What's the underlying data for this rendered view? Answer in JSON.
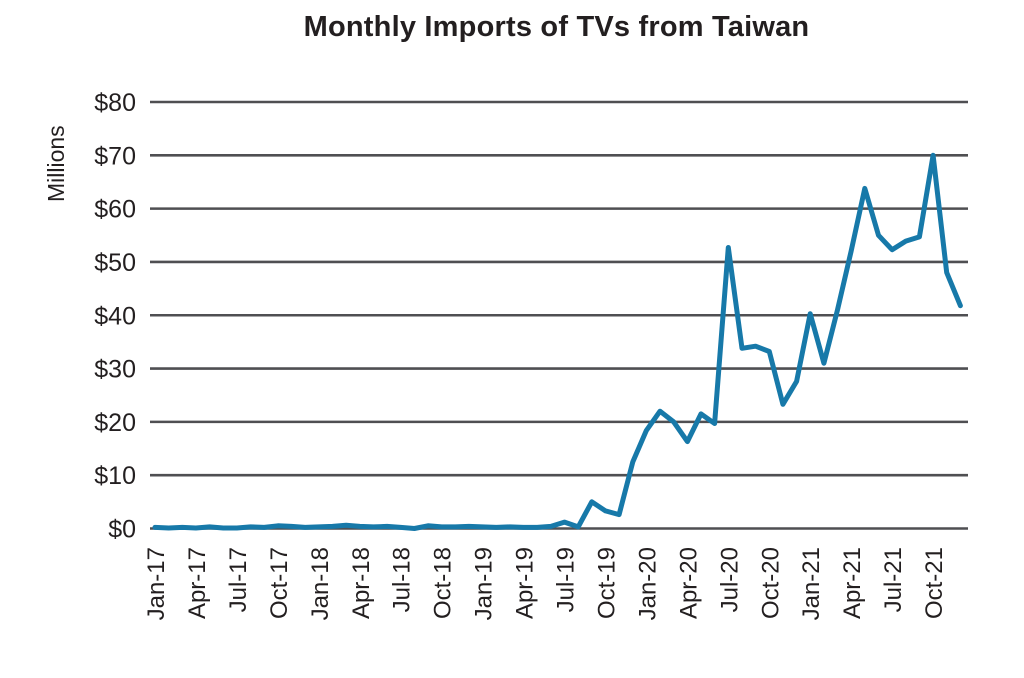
{
  "chart_data": {
    "type": "line",
    "title": "Monthly Imports of TVs from Taiwan",
    "ylabel": "Millions",
    "xlabel": "",
    "ylim": [
      0,
      80
    ],
    "grid": "horizontal",
    "legend_position": "none",
    "line_color": "#1779A9",
    "grid_color": "#4F4F52",
    "text_color": "#231F20",
    "y_tick_labels": [
      "$0",
      "$10",
      "$20",
      "$30",
      "$40",
      "$50",
      "$60",
      "$70",
      "$80"
    ],
    "x_tick_every": 3,
    "x": [
      "Jan-17",
      "Feb-17",
      "Mar-17",
      "Apr-17",
      "May-17",
      "Jun-17",
      "Jul-17",
      "Aug-17",
      "Sep-17",
      "Oct-17",
      "Nov-17",
      "Dec-17",
      "Jan-18",
      "Feb-18",
      "Mar-18",
      "Apr-18",
      "May-18",
      "Jun-18",
      "Jul-18",
      "Aug-18",
      "Sep-18",
      "Oct-18",
      "Nov-18",
      "Dec-18",
      "Jan-19",
      "Feb-19",
      "Mar-19",
      "Apr-19",
      "May-19",
      "Jun-19",
      "Jul-19",
      "Aug-19",
      "Sep-19",
      "Oct-19",
      "Nov-19",
      "Dec-19",
      "Jan-20",
      "Feb-20",
      "Mar-20",
      "Apr-20",
      "May-20",
      "Jun-20",
      "Jul-20",
      "Aug-20",
      "Sep-20",
      "Oct-20",
      "Nov-20",
      "Dec-20",
      "Jan-21",
      "Feb-21",
      "Mar-21",
      "Apr-21",
      "May-21",
      "Jun-21",
      "Jul-21",
      "Aug-21",
      "Sep-21",
      "Oct-21",
      "Nov-21",
      "Dec-21"
    ],
    "values": [
      0.2,
      0.1,
      0.2,
      0.1,
      0.3,
      0.1,
      0.1,
      0.3,
      0.2,
      0.5,
      0.4,
      0.2,
      0.3,
      0.4,
      0.6,
      0.4,
      0.3,
      0.4,
      0.2,
      0.0,
      0.5,
      0.3,
      0.3,
      0.4,
      0.3,
      0.2,
      0.3,
      0.2,
      0.2,
      0.4,
      1.2,
      0.3,
      5.0,
      3.3,
      2.6,
      12.5,
      18.4,
      22.0,
      20.0,
      16.3,
      21.5,
      19.7,
      52.7,
      33.8,
      34.2,
      33.2,
      23.3,
      27.6,
      40.3,
      31.0,
      41.0,
      52.0,
      63.8,
      55.0,
      52.3,
      53.9,
      54.7,
      70.0,
      48.0,
      41.8
    ]
  }
}
